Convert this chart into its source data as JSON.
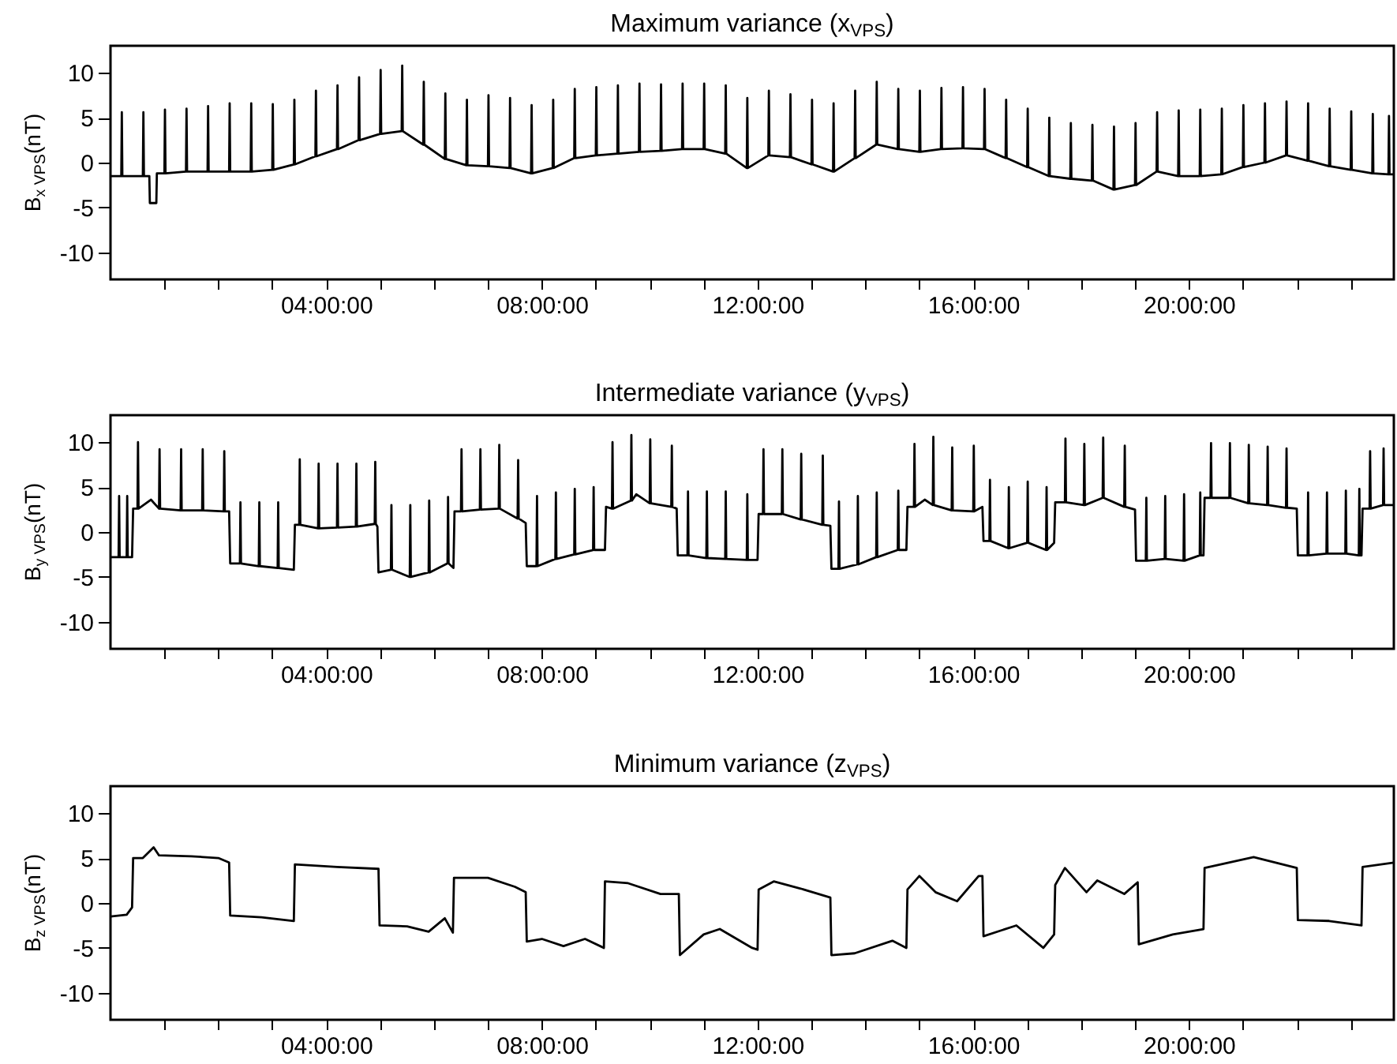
{
  "chart_data": [
    {
      "type": "line",
      "title": "Maximum variance (x$_{VPS}$)",
      "ylabel": "B$_{x VPS}$(nT)",
      "xlim": [
        0,
        23.8
      ],
      "ylim": [
        -13,
        13
      ],
      "xticks": [
        {
          "value": 1,
          "label": null
        },
        {
          "value": 2,
          "label": null
        },
        {
          "value": 3,
          "label": null
        },
        {
          "value": 4,
          "label": "04:00:00"
        },
        {
          "value": 5,
          "label": null
        },
        {
          "value": 6,
          "label": null
        },
        {
          "value": 7,
          "label": null
        },
        {
          "value": 8,
          "label": "08:00:00"
        },
        {
          "value": 9,
          "label": null
        },
        {
          "value": 10,
          "label": null
        },
        {
          "value": 11,
          "label": null
        },
        {
          "value": 12,
          "label": "12:00:00"
        },
        {
          "value": 13,
          "label": null
        },
        {
          "value": 14,
          "label": null
        },
        {
          "value": 15,
          "label": null
        },
        {
          "value": 16,
          "label": "16:00:00"
        },
        {
          "value": 17,
          "label": null
        },
        {
          "value": 18,
          "label": null
        },
        {
          "value": 19,
          "label": null
        },
        {
          "value": 20,
          "label": "20:00:00"
        },
        {
          "value": 21,
          "label": null
        },
        {
          "value": 22,
          "label": null
        },
        {
          "value": 23,
          "label": null
        }
      ],
      "yticks": [
        -10,
        -5,
        0,
        5,
        10
      ],
      "series": [
        {
          "color": "#000000",
          "x": [
            0,
            0.2,
            0.21,
            0.22,
            0.6,
            0.61,
            0.62,
            0.72,
            0.73,
            0.85,
            0.86,
            1.0,
            1.01,
            1.02,
            1.4,
            1.41,
            1.42,
            1.8,
            1.81,
            1.82,
            2.2,
            2.21,
            2.22,
            2.6,
            2.61,
            2.62,
            3.0,
            3.01,
            3.02,
            3.4,
            3.41,
            3.42,
            3.8,
            3.81,
            3.82,
            4.2,
            4.21,
            4.22,
            4.6,
            4.61,
            4.62,
            5.0,
            5.01,
            5.02,
            5.4,
            5.41,
            5.42,
            5.8,
            5.81,
            5.82,
            6.2,
            6.21,
            6.22,
            6.6,
            6.61,
            6.62,
            7.0,
            7.01,
            7.02,
            7.4,
            7.41,
            7.42,
            7.8,
            7.81,
            7.82,
            8.2,
            8.21,
            8.22,
            8.6,
            8.61,
            8.62,
            9.0,
            9.01,
            9.02,
            9.4,
            9.41,
            9.42,
            9.8,
            9.81,
            9.82,
            10.2,
            10.21,
            10.22,
            10.6,
            10.61,
            10.62,
            11.0,
            11.01,
            11.02,
            11.4,
            11.41,
            11.42,
            11.8,
            11.81,
            11.82,
            12.2,
            12.21,
            12.22,
            12.6,
            12.61,
            12.62,
            13.0,
            13.01,
            13.02,
            13.4,
            13.41,
            13.42,
            13.8,
            13.81,
            13.82,
            14.2,
            14.21,
            14.22,
            14.6,
            14.61,
            14.62,
            15.0,
            15.01,
            15.02,
            15.4,
            15.41,
            15.42,
            15.8,
            15.81,
            15.82,
            16.2,
            16.21,
            16.22,
            16.6,
            16.61,
            16.62,
            17.0,
            17.01,
            17.02,
            17.4,
            17.41,
            17.42,
            17.8,
            17.81,
            17.82,
            18.2,
            18.21,
            18.22,
            18.6,
            18.61,
            18.62,
            19.0,
            19.01,
            19.02,
            19.4,
            19.41,
            19.42,
            19.8,
            19.81,
            19.82,
            20.2,
            20.21,
            20.22,
            20.6,
            20.61,
            20.62,
            21.0,
            21.01,
            21.02,
            21.4,
            21.41,
            21.42,
            21.8,
            21.81,
            21.82,
            22.2,
            22.21,
            22.22,
            22.6,
            22.61,
            22.62,
            23.0,
            23.01,
            23.02,
            23.4,
            23.41,
            23.42,
            23.7,
            23.71,
            23.72,
            23.8
          ],
          "values": [
            -1.5,
            -1.5,
            5.6,
            -1.5,
            -1.5,
            5.6,
            -1.5,
            -1.5,
            -4.5,
            -4.5,
            -1.2,
            -1.2,
            5.9,
            -1.2,
            -1.0,
            6.0,
            -1.0,
            -1.0,
            6.3,
            -1.0,
            -1.0,
            6.6,
            -1.0,
            -1.0,
            6.6,
            -1.0,
            -0.8,
            6.5,
            -0.8,
            -0.2,
            7.0,
            -0.2,
            0.7,
            8.0,
            0.7,
            1.5,
            8.6,
            1.5,
            2.5,
            9.5,
            2.5,
            3.2,
            10.3,
            3.2,
            3.5,
            10.8,
            3.5,
            2.0,
            9.0,
            2.0,
            0.4,
            7.7,
            0.4,
            -0.3,
            7.0,
            -0.3,
            -0.4,
            7.5,
            -0.4,
            -0.6,
            7.2,
            -0.6,
            -1.2,
            6.4,
            -1.2,
            -0.6,
            7.0,
            -0.6,
            0.5,
            8.2,
            0.5,
            0.8,
            8.4,
            0.8,
            1.0,
            8.6,
            1.0,
            1.2,
            8.8,
            1.2,
            1.3,
            8.7,
            1.3,
            1.5,
            8.8,
            1.5,
            1.5,
            8.8,
            1.5,
            1.0,
            8.6,
            1.0,
            -0.6,
            7.2,
            -0.6,
            0.8,
            8.0,
            0.8,
            0.6,
            7.6,
            0.6,
            -0.2,
            7.0,
            -0.2,
            -1.0,
            6.6,
            -1.0,
            0.5,
            8.0,
            0.5,
            2.0,
            9.0,
            2.0,
            1.5,
            8.2,
            1.5,
            1.2,
            8.0,
            1.2,
            1.5,
            8.3,
            1.5,
            1.6,
            8.4,
            1.6,
            1.5,
            8.2,
            1.5,
            0.5,
            7.0,
            0.5,
            -0.5,
            6.0,
            -0.5,
            -1.5,
            5.0,
            -1.5,
            -1.8,
            4.4,
            -1.8,
            -2.0,
            4.2,
            -2.0,
            -3.0,
            4.0,
            -3.0,
            -2.5,
            4.4,
            -2.5,
            -1.0,
            5.6,
            -1.0,
            -1.5,
            5.8,
            -1.5,
            -1.5,
            5.9,
            -1.5,
            -1.3,
            6.0,
            -1.3,
            -0.5,
            6.4,
            -0.5,
            0.0,
            6.6,
            0.0,
            0.8,
            6.8,
            0.8,
            0.2,
            6.6,
            0.2,
            -0.4,
            6.0,
            -0.4,
            -0.8,
            5.7,
            -0.8,
            -1.2,
            5.4,
            -1.2,
            -1.3,
            5.2,
            -1.3,
            -1.3
          ]
        }
      ]
    },
    {
      "type": "line",
      "title": "Intermediate variance (y$_{VPS}$)",
      "ylabel": "B$_{y VPS}$(nT)",
      "xlim": [
        0,
        23.8
      ],
      "ylim": [
        -13,
        13
      ],
      "xticks": [
        {
          "value": 1,
          "label": null
        },
        {
          "value": 2,
          "label": null
        },
        {
          "value": 3,
          "label": null
        },
        {
          "value": 4,
          "label": "04:00:00"
        },
        {
          "value": 5,
          "label": null
        },
        {
          "value": 6,
          "label": null
        },
        {
          "value": 7,
          "label": null
        },
        {
          "value": 8,
          "label": "08:00:00"
        },
        {
          "value": 9,
          "label": null
        },
        {
          "value": 10,
          "label": null
        },
        {
          "value": 11,
          "label": null
        },
        {
          "value": 12,
          "label": "12:00:00"
        },
        {
          "value": 13,
          "label": null
        },
        {
          "value": 14,
          "label": null
        },
        {
          "value": 15,
          "label": null
        },
        {
          "value": 16,
          "label": "16:00:00"
        },
        {
          "value": 17,
          "label": null
        },
        {
          "value": 18,
          "label": null
        },
        {
          "value": 19,
          "label": null
        },
        {
          "value": 20,
          "label": "20:00:00"
        },
        {
          "value": 21,
          "label": null
        },
        {
          "value": 22,
          "label": null
        },
        {
          "value": 23,
          "label": null
        }
      ],
      "yticks": [
        -10,
        -5,
        0,
        5,
        10
      ],
      "series": [
        {
          "color": "#000000",
          "x": [
            0,
            0.15,
            0.16,
            0.17,
            0.3,
            0.31,
            0.32,
            0.4,
            0.42,
            0.5,
            0.51,
            0.52,
            0.75,
            0.9,
            0.91,
            0.92,
            1.3,
            1.31,
            1.32,
            1.7,
            1.71,
            1.72,
            2.1,
            2.11,
            2.12,
            2.2,
            2.22,
            2.4,
            2.41,
            2.42,
            2.75,
            2.76,
            2.77,
            3.1,
            3.11,
            3.12,
            3.4,
            3.42,
            3.5,
            3.51,
            3.52,
            3.85,
            3.86,
            3.87,
            4.2,
            4.21,
            4.22,
            4.55,
            4.56,
            4.57,
            4.9,
            4.91,
            4.92,
            4.95,
            4.97,
            5.2,
            5.21,
            5.22,
            5.55,
            5.56,
            5.57,
            5.9,
            5.91,
            5.92,
            6.25,
            6.26,
            6.27,
            6.36,
            6.38,
            6.5,
            6.51,
            6.52,
            6.85,
            6.86,
            6.87,
            7.2,
            7.21,
            7.22,
            7.55,
            7.56,
            7.57,
            7.7,
            7.72,
            7.9,
            7.91,
            7.92,
            8.25,
            8.26,
            8.27,
            8.6,
            8.61,
            8.62,
            8.95,
            8.96,
            8.97,
            9.17,
            9.19,
            9.3,
            9.31,
            9.32,
            9.65,
            9.66,
            9.67,
            9.75,
            10.0,
            10.01,
            10.02,
            10.4,
            10.41,
            10.42,
            10.5,
            10.52,
            10.7,
            10.71,
            10.72,
            11.05,
            11.06,
            11.07,
            11.4,
            11.41,
            11.42,
            11.8,
            11.81,
            11.82,
            12.0,
            12.02,
            12.1,
            12.11,
            12.12,
            12.45,
            12.46,
            12.47,
            12.8,
            12.81,
            12.82,
            13.2,
            13.21,
            13.22,
            13.35,
            13.37,
            13.5,
            13.51,
            13.52,
            13.85,
            13.86,
            13.87,
            14.2,
            14.21,
            14.22,
            14.6,
            14.61,
            14.62,
            14.76,
            14.78,
            14.9,
            14.91,
            14.92,
            15.1,
            15.25,
            15.26,
            15.27,
            15.6,
            15.61,
            15.62,
            16.0,
            16.01,
            16.02,
            16.17,
            16.19,
            16.3,
            16.31,
            16.32,
            16.65,
            16.66,
            16.67,
            17.0,
            17.01,
            17.02,
            17.35,
            17.36,
            17.37,
            17.5,
            17.52,
            17.7,
            17.71,
            17.72,
            18.05,
            18.06,
            18.07,
            18.4,
            18.41,
            18.42,
            18.8,
            18.81,
            18.82,
            19.0,
            19.02,
            19.2,
            19.21,
            19.22,
            19.55,
            19.56,
            19.57,
            19.9,
            19.91,
            19.92,
            20.2,
            20.21,
            20.22,
            20.27,
            20.29,
            20.4,
            20.41,
            20.42,
            20.75,
            20.76,
            20.77,
            21.1,
            21.11,
            21.12,
            21.45,
            21.46,
            21.47,
            21.8,
            21.81,
            21.82,
            22.0,
            22.02,
            22.2,
            22.21,
            22.22,
            22.55,
            22.56,
            22.57,
            22.9,
            22.91,
            22.92,
            23.15,
            23.16,
            23.17,
            23.2,
            23.22,
            23.35,
            23.36,
            23.37,
            23.6,
            23.61,
            23.62,
            23.8
          ],
          "values": [
            -2.8,
            -2.8,
            4.0,
            -2.8,
            -2.8,
            4.0,
            -2.8,
            -2.8,
            2.6,
            2.6,
            10.0,
            2.6,
            3.6,
            2.6,
            9.2,
            2.6,
            2.4,
            9.2,
            2.4,
            2.4,
            9.2,
            2.4,
            2.3,
            9.0,
            2.3,
            2.3,
            -3.5,
            -3.5,
            3.3,
            -3.5,
            -3.8,
            3.3,
            -3.8,
            -4.0,
            3.3,
            -4.0,
            -4.2,
            0.8,
            0.8,
            8.1,
            0.8,
            0.4,
            7.6,
            0.4,
            0.5,
            7.6,
            0.5,
            0.6,
            7.6,
            0.6,
            0.9,
            7.8,
            0.9,
            0.6,
            -4.5,
            -4.2,
            3.0,
            -4.2,
            -5.0,
            3.0,
            -5.0,
            -4.5,
            3.5,
            -4.5,
            -3.5,
            3.9,
            -3.5,
            -4.0,
            2.3,
            2.3,
            9.2,
            2.3,
            2.5,
            9.2,
            2.5,
            2.6,
            9.7,
            2.6,
            1.5,
            8.0,
            1.5,
            1.0,
            -3.8,
            -3.8,
            4.0,
            -3.8,
            -3.0,
            4.4,
            -3.0,
            -2.5,
            4.8,
            -2.5,
            -2.0,
            5.0,
            -2.0,
            -2.0,
            2.8,
            2.6,
            10.0,
            2.6,
            3.5,
            10.8,
            3.5,
            4.2,
            3.2,
            10.3,
            3.2,
            2.8,
            9.6,
            2.8,
            2.6,
            -2.6,
            -2.6,
            4.5,
            -2.6,
            -2.9,
            4.5,
            -2.9,
            -3.0,
            4.5,
            -3.0,
            -3.1,
            4.2,
            -3.1,
            -3.1,
            2.0,
            2.0,
            9.2,
            2.0,
            2.0,
            9.2,
            2.0,
            1.4,
            8.7,
            1.4,
            0.8,
            8.5,
            0.8,
            0.7,
            -4.1,
            -4.1,
            3.4,
            -4.1,
            -3.6,
            4.0,
            -3.6,
            -2.8,
            4.4,
            -2.8,
            -2.0,
            4.6,
            -2.0,
            -2.0,
            2.8,
            2.8,
            9.8,
            2.8,
            3.6,
            3.0,
            10.6,
            3.0,
            2.4,
            9.4,
            2.4,
            2.3,
            9.6,
            2.3,
            2.8,
            -1.0,
            -1.0,
            5.8,
            -1.0,
            -1.8,
            5.0,
            -1.8,
            -1.2,
            5.6,
            -1.2,
            -2.0,
            5.0,
            -2.0,
            -1.2,
            3.3,
            3.3,
            10.4,
            3.3,
            3.0,
            9.8,
            3.0,
            3.8,
            10.5,
            3.8,
            2.8,
            9.6,
            2.8,
            2.5,
            -3.2,
            -3.2,
            3.8,
            -3.2,
            -3.0,
            4.0,
            -3.0,
            -3.2,
            4.2,
            -3.2,
            -2.6,
            4.4,
            -2.6,
            -2.6,
            3.8,
            3.8,
            9.9,
            3.8,
            3.8,
            9.9,
            3.8,
            3.2,
            9.7,
            3.2,
            3.0,
            9.5,
            3.0,
            2.7,
            9.3,
            2.7,
            2.6,
            -2.6,
            -2.6,
            4.4,
            -2.6,
            -2.4,
            4.4,
            -2.4,
            -2.4,
            4.6,
            -2.4,
            -2.6,
            4.8,
            -2.6,
            -2.6,
            2.6,
            2.6,
            9.0,
            2.6,
            3.0,
            9.3,
            3.0,
            3.0
          ]
        }
      ]
    },
    {
      "type": "line",
      "title": "Minimum variance (z$_{VPS}$)",
      "ylabel": "B$_{z VPS}$(nT)",
      "xlim": [
        0,
        23.8
      ],
      "ylim": [
        -13,
        13
      ],
      "xticks": [
        {
          "value": 1,
          "label": null
        },
        {
          "value": 2,
          "label": null
        },
        {
          "value": 3,
          "label": null
        },
        {
          "value": 4,
          "label": "04:00:00"
        },
        {
          "value": 5,
          "label": null
        },
        {
          "value": 6,
          "label": null
        },
        {
          "value": 7,
          "label": null
        },
        {
          "value": 8,
          "label": "08:00:00"
        },
        {
          "value": 9,
          "label": null
        },
        {
          "value": 10,
          "label": null
        },
        {
          "value": 11,
          "label": null
        },
        {
          "value": 12,
          "label": "12:00:00"
        },
        {
          "value": 13,
          "label": null
        },
        {
          "value": 14,
          "label": null
        },
        {
          "value": 15,
          "label": null
        },
        {
          "value": 16,
          "label": "16:00:00"
        },
        {
          "value": 17,
          "label": null
        },
        {
          "value": 18,
          "label": null
        },
        {
          "value": 19,
          "label": null
        },
        {
          "value": 20,
          "label": "20:00:00"
        },
        {
          "value": 21,
          "label": null
        },
        {
          "value": 22,
          "label": null
        },
        {
          "value": 23,
          "label": null
        }
      ],
      "yticks": [
        -10,
        -5,
        0,
        5,
        10
      ],
      "series": [
        {
          "color": "#000000",
          "x": [
            0,
            0.3,
            0.4,
            0.42,
            0.6,
            0.8,
            0.9,
            1.5,
            2.0,
            2.2,
            2.22,
            2.8,
            3.4,
            3.42,
            4.2,
            4.97,
            4.99,
            5.5,
            5.9,
            6.2,
            6.35,
            6.37,
            7.0,
            7.5,
            7.7,
            7.72,
            8.0,
            8.4,
            8.8,
            9.15,
            9.17,
            9.6,
            10.2,
            10.54,
            10.56,
            11.0,
            11.3,
            11.9,
            12.0,
            12.02,
            12.3,
            12.8,
            13.35,
            13.37,
            13.8,
            14.5,
            14.76,
            14.78,
            15.0,
            15.3,
            15.7,
            16.1,
            16.17,
            16.19,
            16.8,
            17.3,
            17.5,
            17.52,
            17.7,
            18.1,
            18.3,
            18.8,
            19.05,
            19.07,
            19.7,
            20.27,
            20.29,
            21.2,
            22.0,
            22.02,
            22.6,
            23.2,
            23.22,
            23.8
          ],
          "values": [
            -1.5,
            -1.3,
            -0.5,
            5.0,
            5.0,
            6.2,
            5.3,
            5.2,
            5.0,
            4.5,
            -1.4,
            -1.6,
            -2.0,
            4.3,
            4.0,
            3.8,
            -2.5,
            -2.6,
            -3.2,
            -1.7,
            -3.3,
            2.8,
            2.8,
            1.8,
            1.2,
            -4.3,
            -4.0,
            -4.8,
            -4.0,
            -5.0,
            2.4,
            2.2,
            1.0,
            1.0,
            -5.8,
            -3.5,
            -2.9,
            -5.0,
            -5.2,
            1.5,
            2.4,
            1.6,
            0.6,
            -5.8,
            -5.6,
            -4.2,
            -5.0,
            1.5,
            3.0,
            1.2,
            0.2,
            3.0,
            3.0,
            -3.7,
            -2.5,
            -5.0,
            -3.5,
            2.0,
            3.9,
            1.2,
            2.5,
            1.0,
            2.3,
            -4.6,
            -3.5,
            -2.9,
            3.9,
            5.1,
            3.9,
            -1.9,
            -2.0,
            -2.5,
            4.0,
            4.5
          ]
        }
      ]
    }
  ]
}
